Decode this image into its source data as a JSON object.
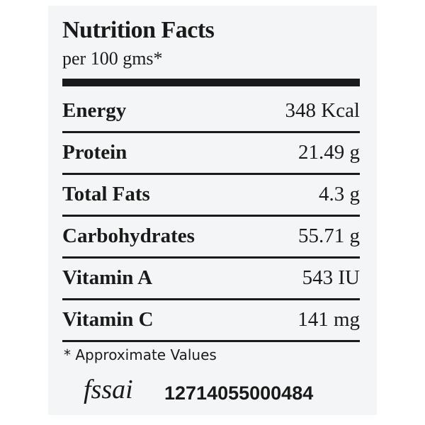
{
  "header": {
    "title": "Nutrition Facts",
    "subtitle": "per 100 gms*"
  },
  "table": {
    "rows": [
      [
        "Energy",
        "348 Kcal"
      ],
      [
        "Protein",
        "21.49 g"
      ],
      [
        "Total Fats",
        "4.3 g"
      ],
      [
        "Carbohydrates",
        "55.71 g"
      ],
      [
        "Vitamin A",
        "543 IU"
      ],
      [
        "Vitamin C",
        "141 mg"
      ]
    ]
  },
  "footnote": "* Approximate Values",
  "fssai": {
    "logo": "fssai",
    "license": "12714055000484"
  }
}
